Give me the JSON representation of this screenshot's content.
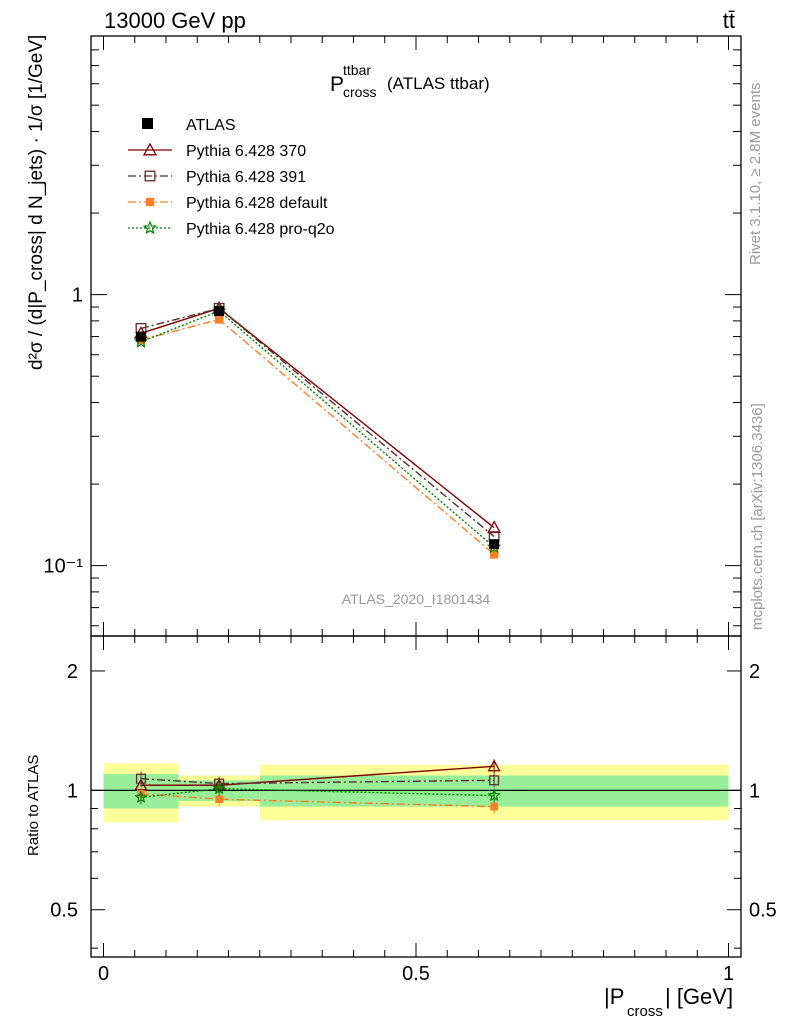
{
  "header": {
    "left": "13000 GeV pp",
    "right": "tt̄"
  },
  "side_text": {
    "rivet": "Rivet 3.1.10, ≥ 2.8M events",
    "mcplots": "mcplots.cern.ch [arXiv:1306.3436]"
  },
  "chart_data": {
    "type": "line",
    "title_main": "P",
    "title_sup": "ttbar",
    "title_sub": "cross",
    "title_suffix": "(ATLAS ttbar)",
    "watermark": "ATLAS_2020_I1801434",
    "ylabel_main": "d²σ / (d|P_cross| d N_jets) · 1/σ [1/GeV]",
    "ylabel_ratio": "Ratio to ATLAS",
    "xlabel_main": "|P",
    "xlabel_sub": "cross",
    "xlabel_suffix": "| [GeV]",
    "x_ticks": [
      "0",
      "0.5",
      "1"
    ],
    "y_ticks_main": [
      "1",
      "10⁻¹"
    ],
    "y_ticks_ratio": [
      "2",
      "1",
      "0.5"
    ],
    "xlim": [
      -0.02,
      1.02
    ],
    "ylim_main": [
      0.055,
      9.0
    ],
    "ylim_ratio": [
      0.38,
      2.45
    ],
    "ylog_main": true,
    "ylog_ratio": true,
    "bins": [
      [
        0.0,
        0.12
      ],
      [
        0.12,
        0.25
      ],
      [
        0.25,
        1.0
      ]
    ],
    "x": [
      0.06,
      0.185,
      0.625
    ],
    "data": {
      "name": "ATLAS",
      "values": [
        0.7,
        0.87,
        0.12
      ],
      "ratio_band_inner": [
        0.1,
        0.06,
        0.09
      ],
      "ratio_band_outer": [
        0.17,
        0.09,
        0.16
      ]
    },
    "series": [
      {
        "name": "Pythia 6.428 370",
        "color": "#800000",
        "dash": "",
        "marker": "triangle-open",
        "values": [
          0.72,
          0.89,
          0.138
        ],
        "ratio": [
          1.03,
          1.03,
          1.15
        ]
      },
      {
        "name": "Pythia 6.428 391",
        "color": "#5a3030",
        "dash": "8,3,2,3",
        "marker": "square-open",
        "values": [
          0.75,
          0.89,
          0.128
        ],
        "ratio": [
          1.07,
          1.04,
          1.06
        ]
      },
      {
        "name": "Pythia 6.428 default",
        "color": "#ff7f27",
        "dash": "8,3,2,3",
        "marker": "square-filled",
        "values": [
          0.68,
          0.81,
          0.11
        ],
        "ratio": [
          0.98,
          0.95,
          0.91
        ]
      },
      {
        "name": "Pythia 6.428 pro-q2o",
        "color": "#008000",
        "dash": "2,2",
        "marker": "star-open",
        "values": [
          0.67,
          0.87,
          0.117
        ],
        "ratio": [
          0.96,
          1.01,
          0.97
        ]
      }
    ],
    "legend_position": "top-left"
  }
}
